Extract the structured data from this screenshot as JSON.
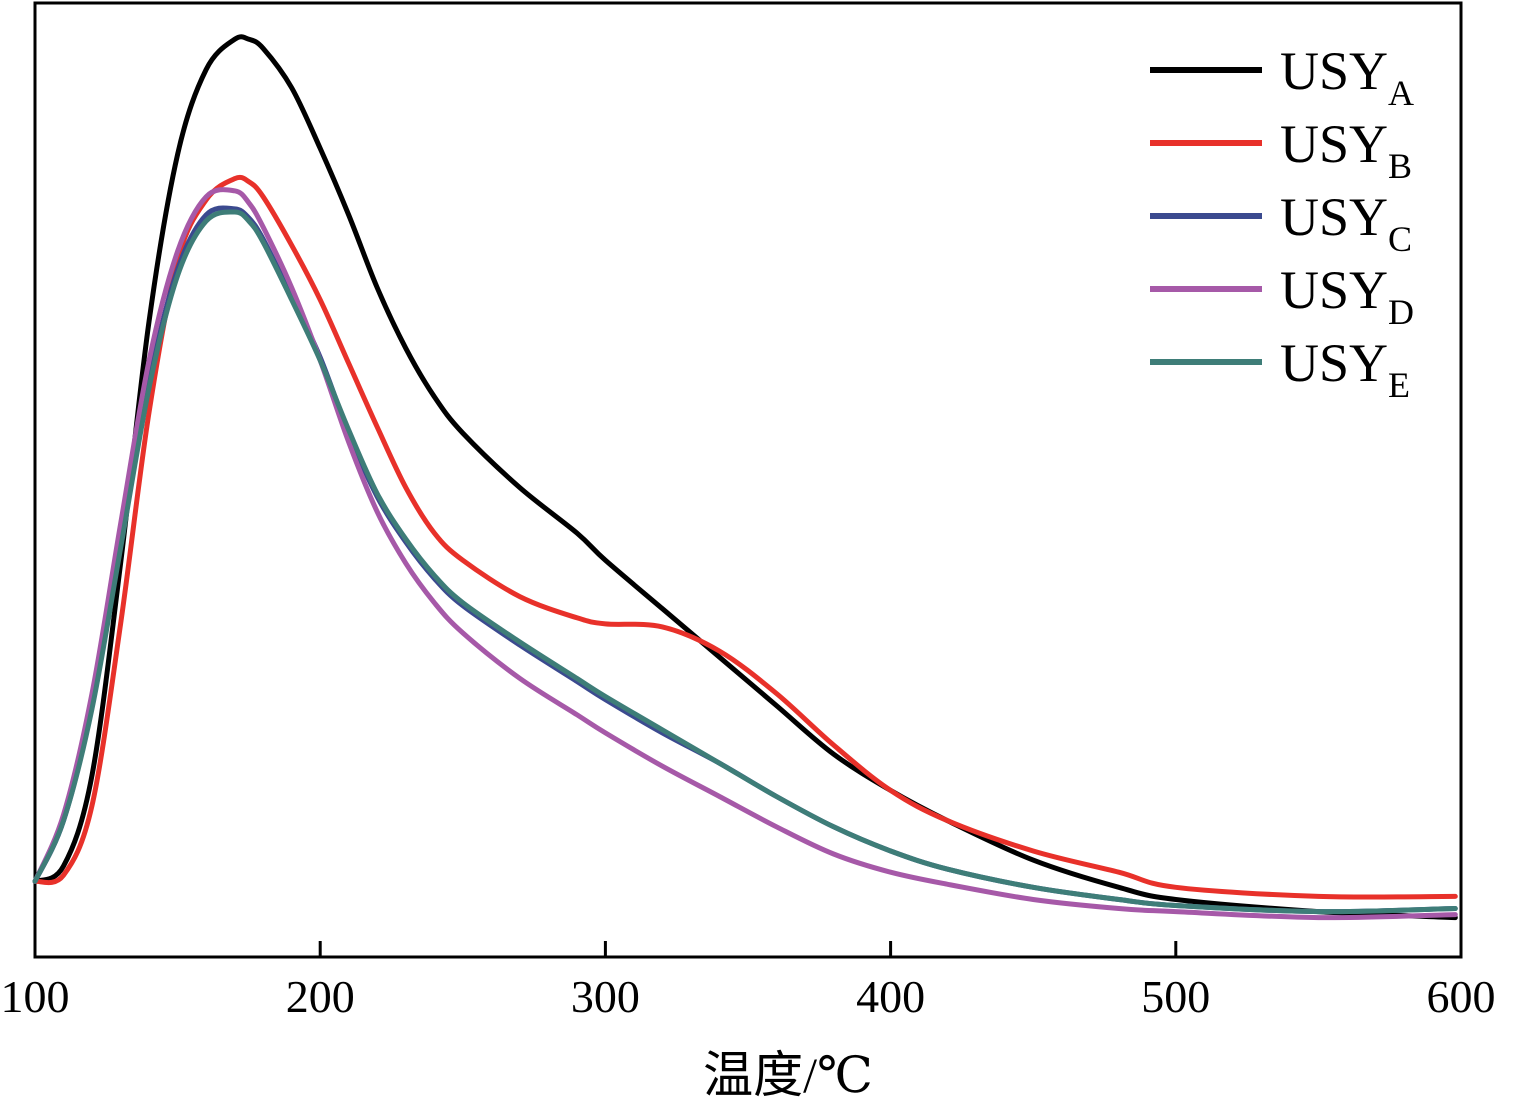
{
  "chart_data": {
    "type": "line",
    "title": "",
    "xlabel": "温度/℃",
    "ylabel": "",
    "xlim": [
      100,
      600
    ],
    "ylim": [
      -0.25,
      2.9
    ],
    "xticks": [
      100,
      200,
      300,
      400,
      500,
      600
    ],
    "grid": false,
    "legend_position": "top-right",
    "series": [
      {
        "name": "USY",
        "subscript": "A",
        "color": "#000000",
        "x": [
          100,
          110,
          120,
          130,
          140,
          150,
          160,
          170,
          175,
          180,
          190,
          200,
          210,
          220,
          230,
          240,
          250,
          270,
          290,
          300,
          320,
          340,
          360,
          380,
          400,
          420,
          450,
          480,
          500,
          550,
          598
        ],
        "y": [
          0,
          0.05,
          0.35,
          1.05,
          1.85,
          2.4,
          2.68,
          2.78,
          2.78,
          2.75,
          2.62,
          2.42,
          2.2,
          1.96,
          1.76,
          1.6,
          1.48,
          1.3,
          1.15,
          1.06,
          0.9,
          0.74,
          0.58,
          0.42,
          0.3,
          0.2,
          0.07,
          -0.02,
          -0.06,
          -0.1,
          -0.12
        ]
      },
      {
        "name": "USY",
        "subscript": "B",
        "color": "#e8312a",
        "x": [
          100,
          110,
          120,
          130,
          140,
          150,
          160,
          170,
          175,
          180,
          190,
          200,
          210,
          220,
          230,
          240,
          250,
          270,
          290,
          300,
          320,
          340,
          360,
          380,
          400,
          420,
          450,
          480,
          500,
          550,
          598
        ],
        "y": [
          0,
          0.02,
          0.25,
          0.85,
          1.55,
          2.05,
          2.25,
          2.32,
          2.31,
          2.26,
          2.1,
          1.92,
          1.71,
          1.5,
          1.3,
          1.15,
          1.06,
          0.94,
          0.87,
          0.85,
          0.84,
          0.76,
          0.62,
          0.45,
          0.3,
          0.2,
          0.1,
          0.03,
          -0.02,
          -0.05,
          -0.05
        ]
      },
      {
        "name": "USY",
        "subscript": "C",
        "color": "#3b4a8f",
        "x": [
          100,
          110,
          120,
          130,
          140,
          150,
          160,
          170,
          175,
          180,
          190,
          200,
          210,
          220,
          230,
          240,
          250,
          270,
          290,
          300,
          320,
          340,
          360,
          380,
          400,
          420,
          450,
          480,
          500,
          550,
          598
        ],
        "y": [
          0,
          0.2,
          0.58,
          1.12,
          1.65,
          2.02,
          2.2,
          2.22,
          2.19,
          2.12,
          1.93,
          1.73,
          1.48,
          1.27,
          1.12,
          1.0,
          0.91,
          0.78,
          0.66,
          0.6,
          0.49,
          0.39,
          0.28,
          0.18,
          0.1,
          0.04,
          -0.02,
          -0.06,
          -0.08,
          -0.1,
          -0.09
        ]
      },
      {
        "name": "USY",
        "subscript": "D",
        "color": "#a659a8",
        "x": [
          100,
          110,
          120,
          130,
          140,
          150,
          160,
          170,
          175,
          180,
          190,
          200,
          210,
          220,
          230,
          240,
          250,
          270,
          290,
          300,
          320,
          340,
          360,
          380,
          400,
          420,
          450,
          480,
          500,
          550,
          598
        ],
        "y": [
          0,
          0.22,
          0.62,
          1.18,
          1.72,
          2.08,
          2.26,
          2.28,
          2.24,
          2.16,
          1.96,
          1.72,
          1.45,
          1.22,
          1.05,
          0.92,
          0.82,
          0.67,
          0.55,
          0.49,
          0.38,
          0.28,
          0.18,
          0.09,
          0.03,
          -0.01,
          -0.06,
          -0.09,
          -0.1,
          -0.12,
          -0.11
        ]
      },
      {
        "name": "USY",
        "subscript": "E",
        "color": "#3e7d78",
        "x": [
          100,
          110,
          120,
          130,
          140,
          150,
          160,
          170,
          175,
          180,
          190,
          200,
          210,
          220,
          230,
          240,
          250,
          270,
          290,
          300,
          320,
          340,
          360,
          380,
          400,
          420,
          450,
          480,
          500,
          550,
          598
        ],
        "y": [
          0,
          0.2,
          0.57,
          1.1,
          1.63,
          2.0,
          2.18,
          2.21,
          2.18,
          2.11,
          1.92,
          1.72,
          1.49,
          1.28,
          1.13,
          1.01,
          0.92,
          0.79,
          0.67,
          0.61,
          0.5,
          0.39,
          0.28,
          0.18,
          0.1,
          0.04,
          -0.02,
          -0.06,
          -0.08,
          -0.1,
          -0.09
        ]
      }
    ]
  }
}
